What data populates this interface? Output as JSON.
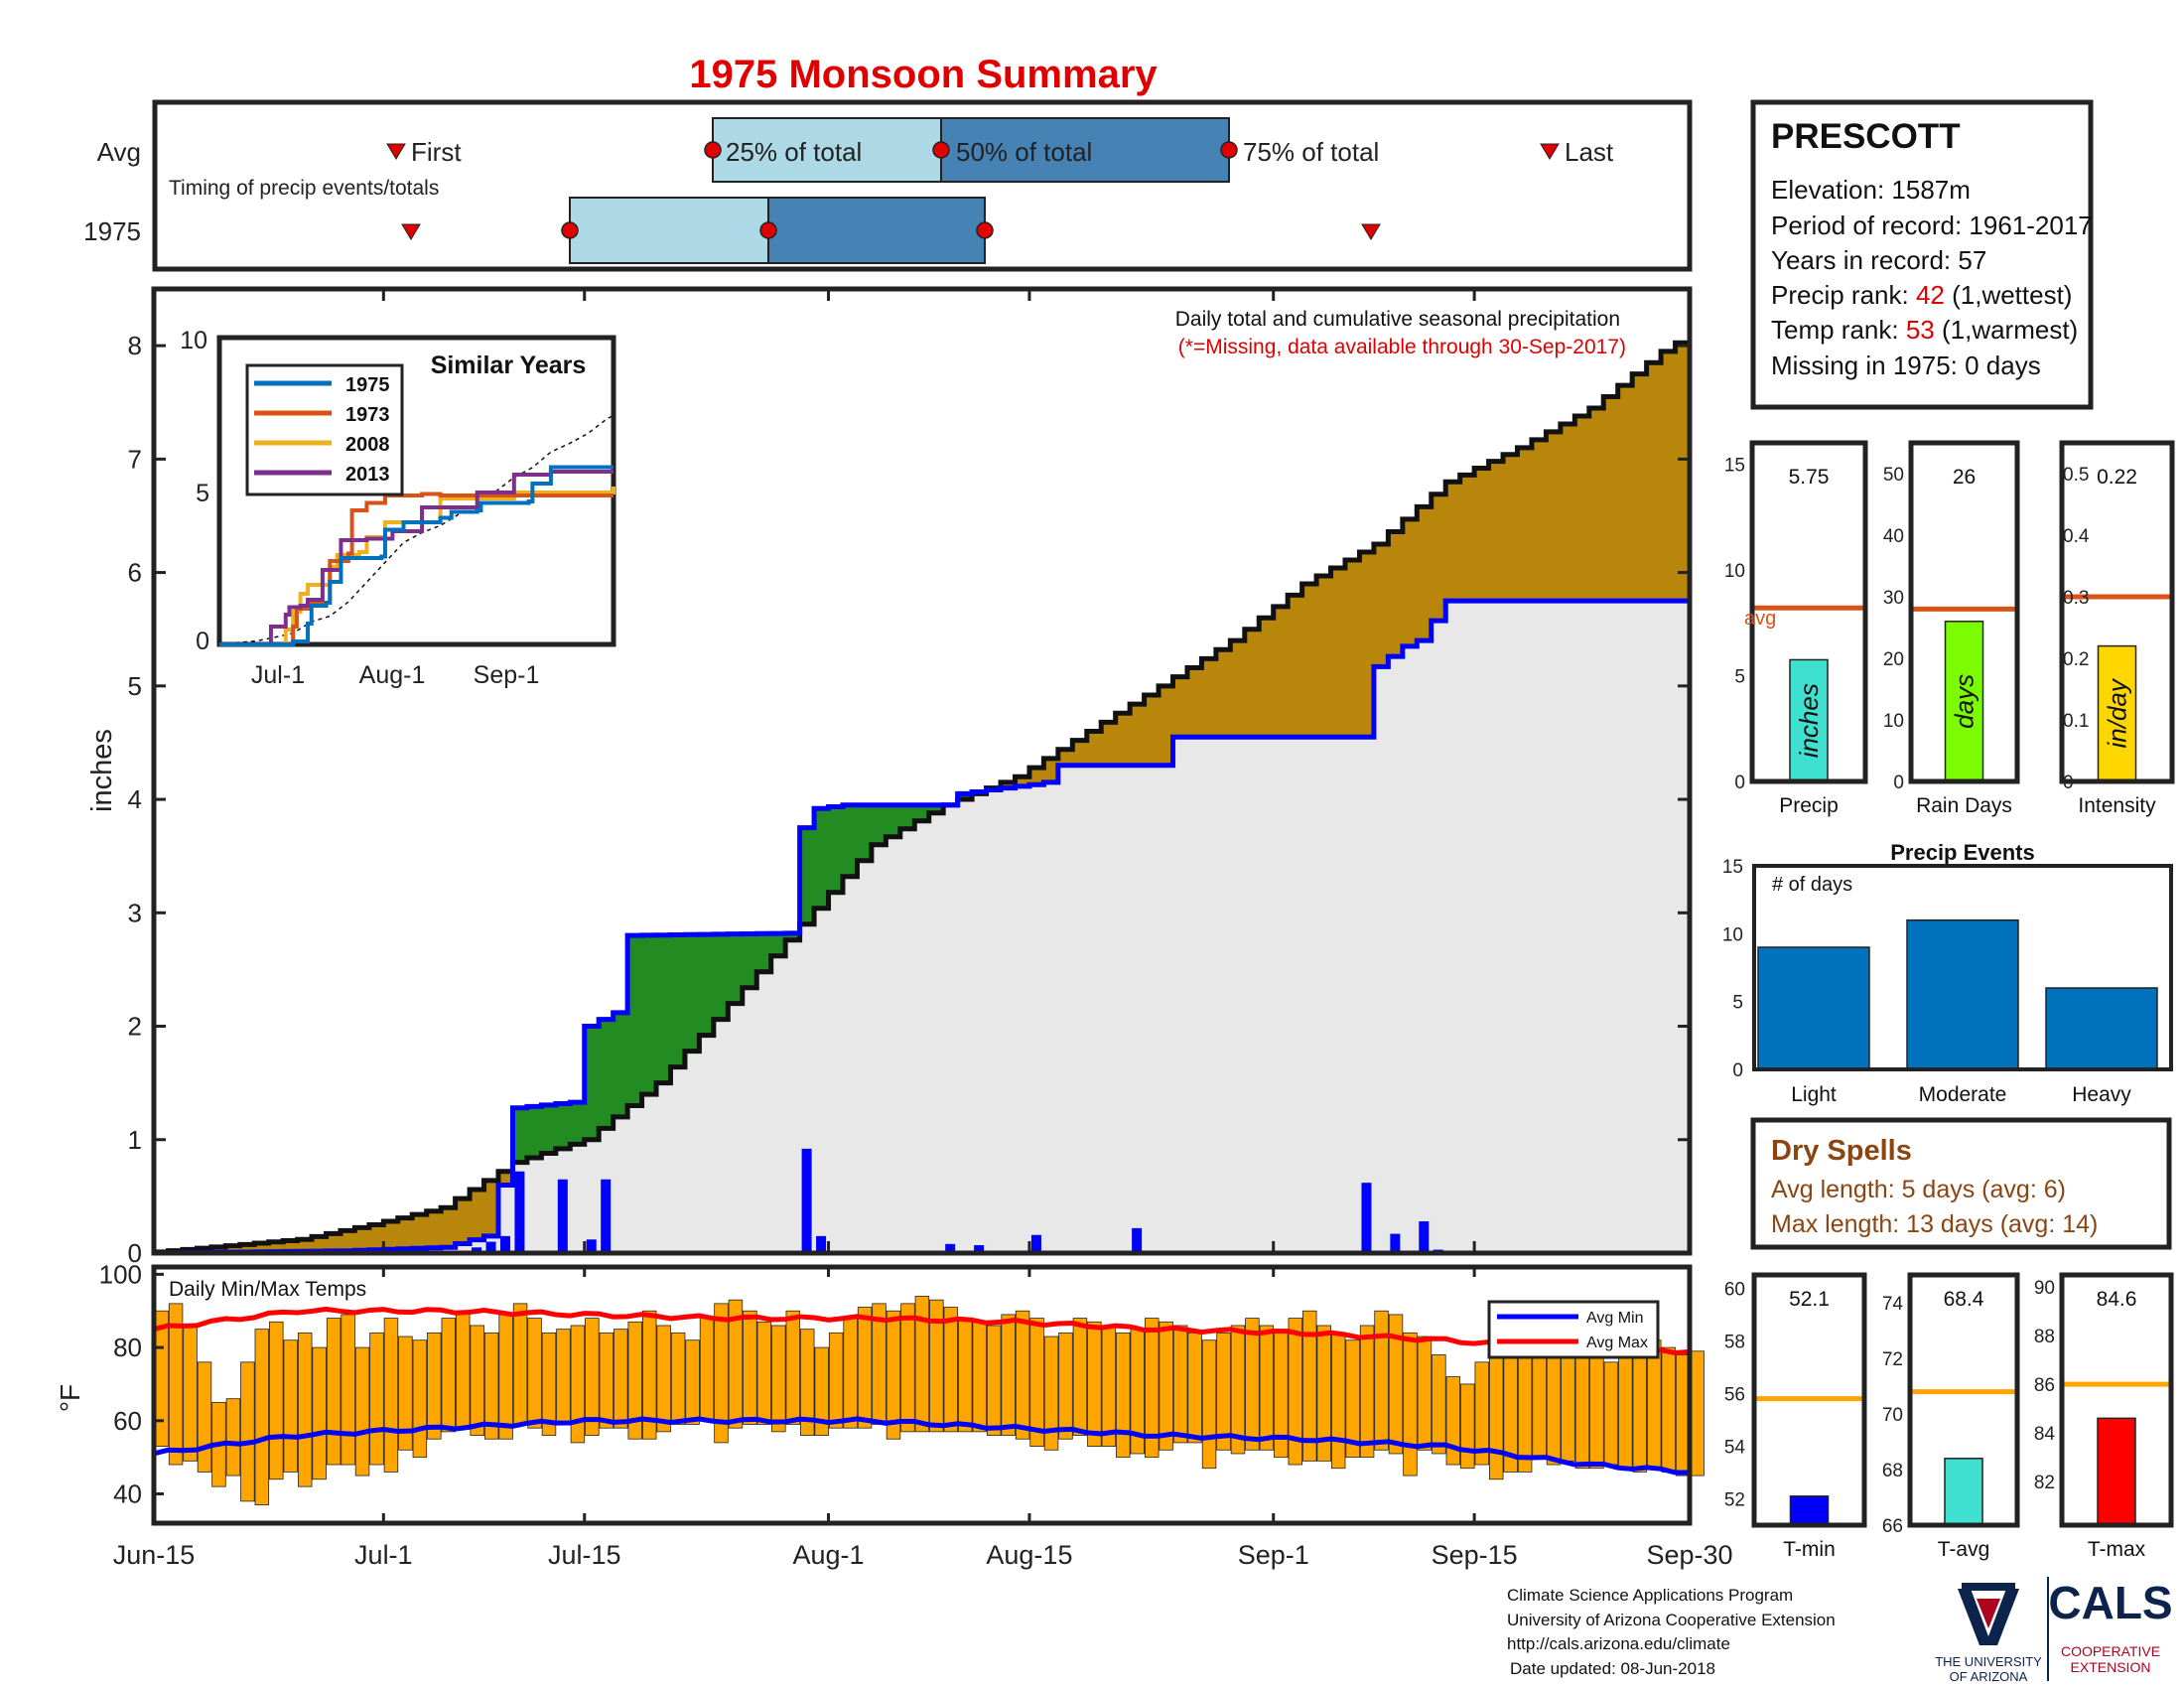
{
  "title": "1975 Monsoon Summary",
  "timing": {
    "caption": "Timing of precip events/totals",
    "row_labels": [
      "Avg",
      "1975"
    ],
    "avg_labels": {
      "first": "First",
      "p25": "25% of total",
      "p50": "50% of total",
      "p75": "75% of total",
      "last": "Last"
    }
  },
  "station": {
    "name": "PRESCOTT",
    "elevation": "Elevation: 1587m",
    "period": "Period of record: 1961-2017",
    "years": "Years in record: 57",
    "precip_rank_prefix": "Precip rank: ",
    "precip_rank_value": "42",
    "precip_rank_suffix": " (1,wettest)",
    "temp_rank_prefix": "Temp rank: ",
    "temp_rank_value": "53",
    "temp_rank_suffix": " (1,warmest)",
    "missing": "Missing in 1975: 0 days"
  },
  "main_panel": {
    "annotation_line1": "Daily total and cumulative seasonal precipitation",
    "annotation_line2": "(*=Missing, data available through 30-Sep-2017)",
    "ylabel": "inches"
  },
  "similar_years": {
    "title": "Similar Years",
    "legend": [
      {
        "name": "1975",
        "color": "#0072bd"
      },
      {
        "name": "1973",
        "color": "#d95319"
      },
      {
        "name": "2008",
        "color": "#edb120"
      },
      {
        "name": "2013",
        "color": "#7e2f8e"
      }
    ],
    "x_ticks": [
      "Jul-1",
      "Aug-1",
      "Sep-1"
    ],
    "y_ticks": [
      "0",
      "5",
      "10"
    ]
  },
  "x_axis_ticks": [
    "Jun-15",
    "Jul-1",
    "Jul-15",
    "Aug-1",
    "Aug-15",
    "Sep-1",
    "Sep-15",
    "Sep-30"
  ],
  "temps_panel": {
    "label": "Daily Min/Max Temps",
    "ylabel": "°F",
    "legend": [
      {
        "name": "Avg Min",
        "color": "#0000ff"
      },
      {
        "name": "Avg Max",
        "color": "#ff0000"
      }
    ]
  },
  "small_bars": {
    "precip": {
      "value_label": "5.75",
      "value": 5.75,
      "ymax": 16,
      "avg": 8.2,
      "ticks": [
        "0",
        "5",
        "10",
        "15"
      ],
      "unit": "inches",
      "xlabel": "Precip",
      "avg_label": "avg",
      "color": "#40e0d0"
    },
    "rain_days": {
      "value_label": "26",
      "value": 26,
      "ymax": 55,
      "avg": 28,
      "ticks": [
        "0",
        "10",
        "20",
        "30",
        "40",
        "50"
      ],
      "unit": "days",
      "xlabel": "Rain Days",
      "color": "#7cfc00"
    },
    "intensity": {
      "value_label": "0.22",
      "value": 0.22,
      "ymax": 0.55,
      "avg": 0.3,
      "ticks": [
        "0",
        "0.1",
        "0.2",
        "0.3",
        "0.4",
        "0.5"
      ],
      "unit": "in/day",
      "xlabel": "Intensity",
      "color": "#ffd700"
    }
  },
  "precip_events": {
    "title": "Precip Events",
    "ylabel_note": "# of days",
    "categories": [
      "Light",
      "Moderate",
      "Heavy"
    ],
    "values": [
      9,
      11,
      6
    ],
    "ticks": [
      "0",
      "5",
      "10",
      "15"
    ]
  },
  "dry_spells": {
    "title": "Dry Spells",
    "avg_length": "Avg length: 5 days (avg: 6)",
    "max_length": "Max length: 13 days (avg: 14)"
  },
  "temp_bars": {
    "tmin": {
      "value_label": "52.1",
      "value": 52.1,
      "avg": 55.8,
      "ymin": 51,
      "ymax": 60.5,
      "ticks": [
        "52",
        "54",
        "56",
        "58",
        "60"
      ],
      "xlabel": "T-min",
      "color": "#0000ff"
    },
    "tavg": {
      "value_label": "68.4",
      "value": 68.4,
      "avg": 70.8,
      "ymin": 66,
      "ymax": 75,
      "ticks": [
        "66",
        "68",
        "70",
        "72",
        "74"
      ],
      "xlabel": "T-avg",
      "color": "#40e0d0"
    },
    "tmax": {
      "value_label": "84.6",
      "value": 84.6,
      "avg": 86,
      "ymin": 80.2,
      "ymax": 90.5,
      "ticks": [
        "82",
        "84",
        "86",
        "88",
        "90"
      ],
      "xlabel": "T-max",
      "color": "#ff0000"
    }
  },
  "footer": {
    "line1": "Climate Science Applications Program",
    "line2": "University of Arizona Cooperative Extension",
    "line3": "http://cals.arizona.edu/climate",
    "line4": "Date updated: 08-Jun-2018"
  },
  "logos": {
    "ua_line1": "THE UNIVERSITY",
    "ua_line2": "OF ARIZONA",
    "cals": "CALS",
    "cals_line1": "COOPERATIVE",
    "cals_line2": "EXTENSION"
  },
  "chart_data": {
    "type": "area",
    "x_start": "Jun-15",
    "x_end": "Sep-30",
    "ylabel": "inches",
    "ylim": [
      0,
      8.5
    ],
    "series": [
      {
        "name": "1975",
        "color": "#0000ff",
        "points": [
          [
            0,
            0
          ],
          [
            13,
            0.02
          ],
          [
            20,
            0.05
          ],
          [
            23,
            0.15
          ],
          [
            24,
            0.6
          ],
          [
            25,
            1.28
          ],
          [
            29,
            1.33
          ],
          [
            30,
            2.0
          ],
          [
            32,
            2.12
          ],
          [
            33,
            2.8
          ],
          [
            44,
            2.82
          ],
          [
            45,
            3.75
          ],
          [
            46,
            3.92
          ],
          [
            48,
            3.95
          ],
          [
            55,
            3.95
          ],
          [
            56,
            4.05
          ],
          [
            59,
            4.1
          ],
          [
            61,
            4.13
          ],
          [
            62,
            4.15
          ],
          [
            63,
            4.3
          ],
          [
            70,
            4.3
          ],
          [
            71,
            4.55
          ],
          [
            84,
            4.55
          ],
          [
            85,
            5.17
          ],
          [
            87,
            5.35
          ],
          [
            88,
            5.4
          ],
          [
            90,
            5.75
          ],
          [
            107,
            5.75
          ]
        ]
      },
      {
        "name": "",
        "color": "#000000",
        "points": [
          [
            0,
            0.01
          ],
          [
            10,
            0.12
          ],
          [
            15,
            0.25
          ],
          [
            20,
            0.4
          ],
          [
            25,
            0.8
          ],
          [
            30,
            1.0
          ],
          [
            35,
            1.5
          ],
          [
            40,
            2.2
          ],
          [
            45,
            2.9
          ],
          [
            50,
            3.6
          ],
          [
            55,
            3.95
          ],
          [
            60,
            4.2
          ],
          [
            65,
            4.6
          ],
          [
            70,
            5.0
          ],
          [
            75,
            5.4
          ],
          [
            80,
            5.9
          ],
          [
            85,
            6.25
          ],
          [
            90,
            6.8
          ],
          [
            95,
            7.1
          ],
          [
            100,
            7.45
          ],
          [
            105,
            7.95
          ],
          [
            107,
            8.1
          ]
        ]
      }
    ],
    "daily_precip": [
      [
        22,
        0.05
      ],
      [
        23,
        0.1
      ],
      [
        24,
        0.15
      ],
      [
        25,
        0.72
      ],
      [
        28,
        0.65
      ],
      [
        30,
        0.12
      ],
      [
        31,
        0.65
      ],
      [
        44,
        0.02
      ],
      [
        45,
        0.92
      ],
      [
        46,
        0.15
      ],
      [
        55,
        0.08
      ],
      [
        57,
        0.07
      ],
      [
        61,
        0.16
      ],
      [
        68,
        0.22
      ],
      [
        84,
        0.62
      ],
      [
        86,
        0.17
      ],
      [
        88,
        0.28
      ],
      [
        89,
        0.03
      ]
    ],
    "temps": {
      "ylabel": "°F",
      "ylim": [
        32,
        102
      ],
      "avg_max": [
        [
          0,
          85
        ],
        [
          10,
          90
        ],
        [
          20,
          90
        ],
        [
          30,
          89
        ],
        [
          40,
          88
        ],
        [
          50,
          88
        ],
        [
          60,
          87
        ],
        [
          70,
          85
        ],
        [
          80,
          84
        ],
        [
          90,
          82
        ],
        [
          100,
          79
        ],
        [
          107,
          79
        ]
      ],
      "avg_min": [
        [
          0,
          51
        ],
        [
          10,
          56
        ],
        [
          20,
          58
        ],
        [
          30,
          60
        ],
        [
          40,
          60
        ],
        [
          50,
          60
        ],
        [
          60,
          58
        ],
        [
          70,
          56
        ],
        [
          80,
          55
        ],
        [
          90,
          53
        ],
        [
          100,
          48
        ],
        [
          107,
          46
        ]
      ],
      "daily_max": [
        90,
        92,
        86,
        76,
        65,
        66,
        76,
        85,
        87,
        82,
        84,
        80,
        88,
        89,
        80,
        84,
        88,
        83,
        82,
        84,
        88,
        90,
        86,
        84,
        89,
        92,
        88,
        84,
        85,
        86,
        88,
        84,
        85,
        87,
        90,
        86,
        84,
        82,
        88,
        92,
        93,
        90,
        87,
        86,
        90,
        85,
        80,
        84,
        88,
        91,
        92,
        90,
        92,
        94,
        93,
        91,
        88,
        87,
        86,
        89,
        90,
        88,
        83,
        84,
        88,
        87,
        86,
        84,
        85,
        88,
        87,
        86,
        84,
        82,
        84,
        86,
        88,
        86,
        84,
        88,
        90,
        86,
        84,
        82,
        86,
        90,
        89,
        84,
        83,
        78,
        72,
        70,
        76,
        80,
        82,
        82,
        84,
        86,
        80,
        84,
        77,
        76,
        82,
        80,
        82,
        80,
        78,
        79
      ],
      "daily_min": [
        53,
        48,
        49,
        46,
        42,
        45,
        38,
        37,
        44,
        46,
        42,
        44,
        48,
        48,
        45,
        48,
        46,
        52,
        50,
        55,
        57,
        58,
        56,
        55,
        55,
        59,
        58,
        56,
        59,
        54,
        56,
        58,
        58,
        55,
        55,
        57,
        59,
        59,
        60,
        54,
        58,
        59,
        59,
        57,
        59,
        56,
        56,
        58,
        58,
        58,
        59,
        55,
        57,
        57,
        57,
        57,
        57,
        57,
        56,
        56,
        55,
        53,
        52,
        55,
        56,
        53,
        53,
        50,
        51,
        50,
        52,
        54,
        54,
        47,
        52,
        51,
        52,
        52,
        50,
        48,
        49,
        49,
        47,
        50,
        50,
        52,
        51,
        45,
        52,
        51,
        48,
        47,
        48,
        44,
        46,
        46,
        50,
        48,
        49,
        47,
        47,
        48,
        47,
        46,
        47,
        46,
        45,
        45
      ]
    }
  }
}
